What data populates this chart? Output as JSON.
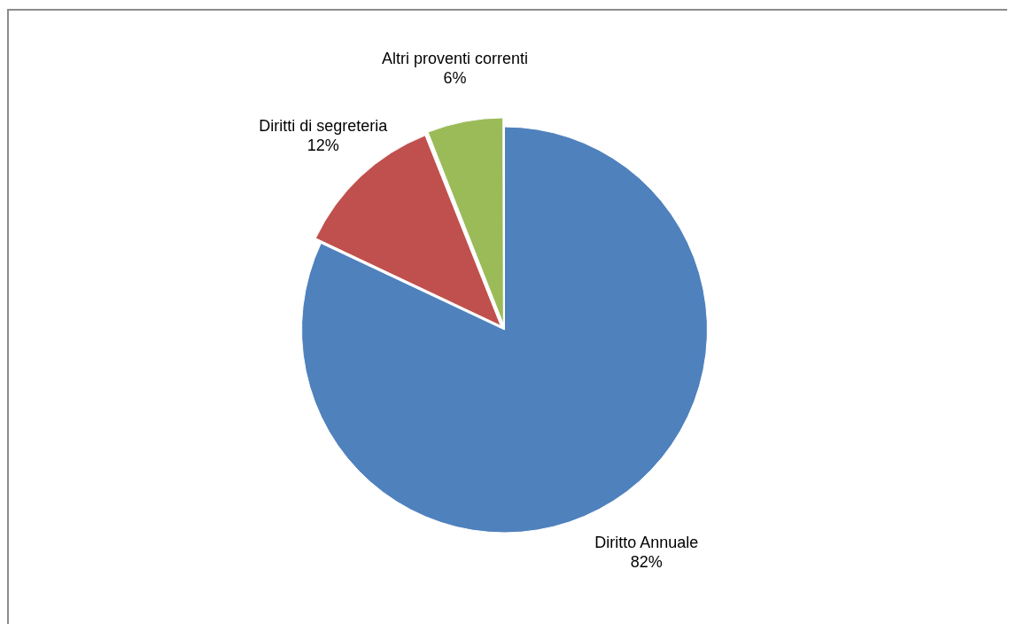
{
  "chart_data": {
    "type": "pie",
    "categories": [
      "Diritto Annuale",
      "Diritti di segreteria",
      "Altri proventi correnti"
    ],
    "values": [
      82,
      12,
      6
    ],
    "colors": [
      "#4f81bd",
      "#c0504d",
      "#9bbb59"
    ],
    "value_labels": [
      "82%",
      "12%",
      "6%"
    ],
    "legend": false
  }
}
